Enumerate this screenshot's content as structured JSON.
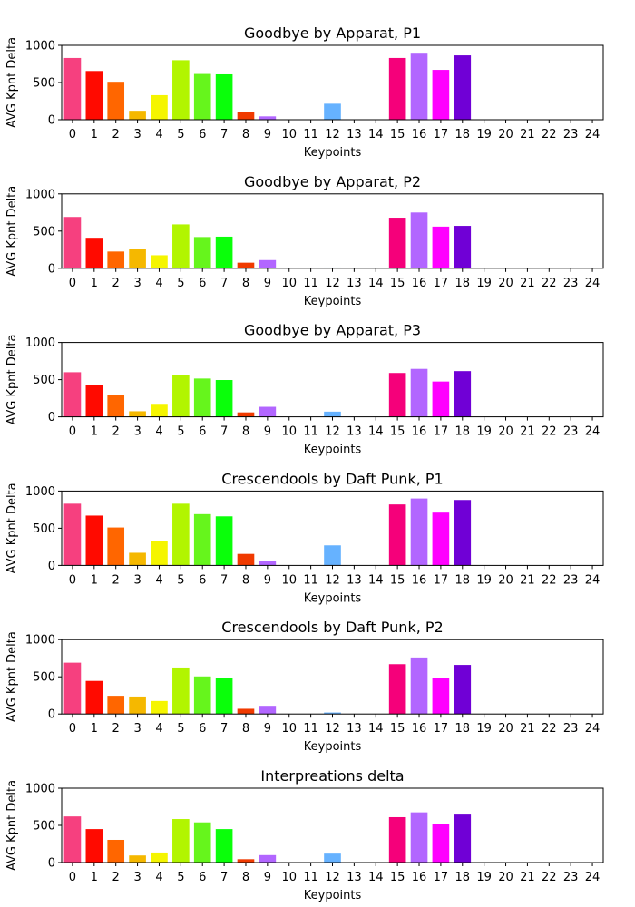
{
  "colors": [
    "#f6407f",
    "#ff0a00",
    "#ff6600",
    "#f5b800",
    "#f5f500",
    "#b2f500",
    "#66f51c",
    "#0aff0a",
    "#f03a00",
    "#b266ff",
    "#cccccc",
    "#cccccc",
    "#66b2ff",
    "#cccccc",
    "#cccccc",
    "#f5007a",
    "#b266ff",
    "#ff00ff",
    "#7000d6",
    "#cccccc",
    "#cccccc",
    "#cccccc",
    "#cccccc",
    "#cccccc",
    "#cccccc"
  ],
  "chart_data": [
    {
      "type": "bar",
      "title": "Goodbye by Apparat, P1",
      "xlabel": "Keypoints",
      "ylabel": "AVG Kpnt Delta",
      "ylim": [
        0,
        1000
      ],
      "yticks": [
        0,
        500,
        1000
      ],
      "categories": [
        "0",
        "1",
        "2",
        "3",
        "4",
        "5",
        "6",
        "7",
        "8",
        "9",
        "10",
        "11",
        "12",
        "13",
        "14",
        "15",
        "16",
        "17",
        "18",
        "19",
        "20",
        "21",
        "22",
        "23",
        "24"
      ],
      "values": [
        830,
        655,
        510,
        120,
        330,
        800,
        615,
        610,
        105,
        45,
        0,
        0,
        215,
        0,
        0,
        830,
        900,
        670,
        865,
        0,
        0,
        0,
        0,
        0,
        0
      ]
    },
    {
      "type": "bar",
      "title": "Goodbye by Apparat,  P2",
      "xlabel": "Keypoints",
      "ylabel": "AVG Kpnt Delta",
      "ylim": [
        0,
        1000
      ],
      "yticks": [
        0,
        500,
        1000
      ],
      "categories": [
        "0",
        "1",
        "2",
        "3",
        "4",
        "5",
        "6",
        "7",
        "8",
        "9",
        "10",
        "11",
        "12",
        "13",
        "14",
        "15",
        "16",
        "17",
        "18",
        "19",
        "20",
        "21",
        "22",
        "23",
        "24"
      ],
      "values": [
        690,
        410,
        225,
        260,
        175,
        590,
        420,
        425,
        75,
        110,
        0,
        0,
        10,
        0,
        0,
        680,
        750,
        560,
        570,
        0,
        0,
        0,
        0,
        0,
        0
      ]
    },
    {
      "type": "bar",
      "title": "Goodbye by Apparat,  P3",
      "xlabel": "Keypoints",
      "ylabel": "AVG Kpnt Delta",
      "ylim": [
        0,
        1000
      ],
      "yticks": [
        0,
        500,
        1000
      ],
      "categories": [
        "0",
        "1",
        "2",
        "3",
        "4",
        "5",
        "6",
        "7",
        "8",
        "9",
        "10",
        "11",
        "12",
        "13",
        "14",
        "15",
        "16",
        "17",
        "18",
        "19",
        "20",
        "21",
        "22",
        "23",
        "24"
      ],
      "values": [
        600,
        430,
        295,
        75,
        175,
        565,
        515,
        495,
        60,
        135,
        0,
        0,
        70,
        0,
        0,
        590,
        645,
        475,
        615,
        0,
        0,
        0,
        0,
        0,
        0
      ]
    },
    {
      "type": "bar",
      "title": "Crescendools by Daft Punk, P1",
      "xlabel": "Keypoints",
      "ylabel": "AVG Kpnt Delta",
      "ylim": [
        0,
        1000
      ],
      "yticks": [
        0,
        500,
        1000
      ],
      "categories": [
        "0",
        "1",
        "2",
        "3",
        "4",
        "5",
        "6",
        "7",
        "8",
        "9",
        "10",
        "11",
        "12",
        "13",
        "14",
        "15",
        "16",
        "17",
        "18",
        "19",
        "20",
        "21",
        "22",
        "23",
        "24"
      ],
      "values": [
        830,
        670,
        510,
        170,
        330,
        830,
        690,
        660,
        155,
        60,
        0,
        0,
        270,
        0,
        0,
        820,
        900,
        710,
        880,
        0,
        0,
        0,
        0,
        0,
        0
      ]
    },
    {
      "type": "bar",
      "title": "Crescendools by Daft Punk, P2",
      "xlabel": "Keypoints",
      "ylabel": "AVG Kpnt Delta",
      "ylim": [
        0,
        1000
      ],
      "yticks": [
        0,
        500,
        1000
      ],
      "categories": [
        "0",
        "1",
        "2",
        "3",
        "4",
        "5",
        "6",
        "7",
        "8",
        "9",
        "10",
        "11",
        "12",
        "13",
        "14",
        "15",
        "16",
        "17",
        "18",
        "19",
        "20",
        "21",
        "22",
        "23",
        "24"
      ],
      "values": [
        690,
        445,
        245,
        235,
        175,
        625,
        505,
        480,
        70,
        110,
        0,
        0,
        20,
        0,
        0,
        670,
        760,
        490,
        660,
        0,
        0,
        0,
        0,
        0,
        0
      ]
    },
    {
      "type": "bar",
      "title": "Interpreations delta",
      "xlabel": "Keypoints",
      "ylabel": "AVG Kpnt Delta",
      "ylim": [
        0,
        1000
      ],
      "yticks": [
        0,
        500,
        1000
      ],
      "categories": [
        "0",
        "1",
        "2",
        "3",
        "4",
        "5",
        "6",
        "7",
        "8",
        "9",
        "10",
        "11",
        "12",
        "13",
        "14",
        "15",
        "16",
        "17",
        "18",
        "19",
        "20",
        "21",
        "22",
        "23",
        "24"
      ],
      "values": [
        620,
        450,
        305,
        95,
        135,
        585,
        540,
        450,
        45,
        100,
        0,
        0,
        120,
        0,
        0,
        610,
        675,
        520,
        645,
        0,
        0,
        0,
        0,
        0,
        0
      ]
    }
  ]
}
